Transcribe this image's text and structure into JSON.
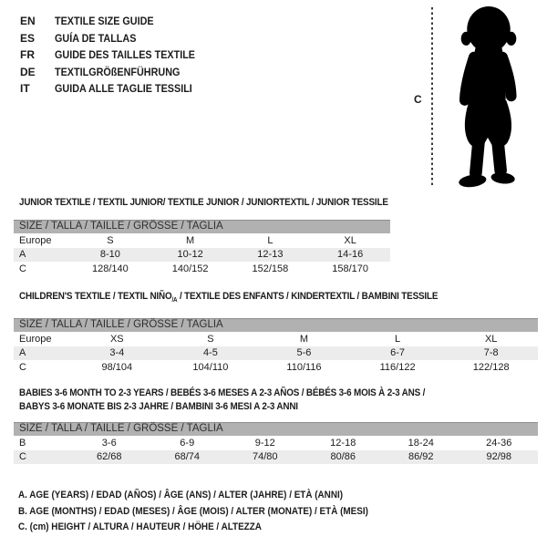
{
  "colors": {
    "background": "#ffffff",
    "table_header_bg": "#b1b1b1",
    "table_header_border": "#8d8d8d",
    "row_alt_bg": "#ececec",
    "text": "#1b1b1b",
    "silhouette": "#000000"
  },
  "languages": [
    {
      "code": "EN",
      "title": "TEXTILE SIZE GUIDE"
    },
    {
      "code": "ES",
      "title": "GUÍA DE TALLAS"
    },
    {
      "code": "FR",
      "title": "GUIDE DES TAILLES TEXTILE"
    },
    {
      "code": "DE",
      "title": "TEXTILGRÖßENFÜHRUNG"
    },
    {
      "code": "IT",
      "title": "GUIDA ALLE TAGLIE TESSILI"
    }
  ],
  "figure": {
    "label": "C",
    "icon": "toddler-silhouette-icon"
  },
  "tables": [
    {
      "title_segments": [
        {
          "text": "JUNIOR TEXTILE / TEXTIL JUNIOR/ TEXTILE JUNIOR / JUNIORTEXTIL / JUNIOR TESSILE"
        }
      ],
      "size_header": "SIZE / TALLA / TAILLE / GRÖSSE / TAGLIA",
      "rows": [
        {
          "label": "Europe",
          "values": [
            "S",
            "M",
            "L",
            "XL"
          ],
          "shaded": false
        },
        {
          "label": "A",
          "values": [
            "8-10",
            "10-12",
            "12-13",
            "14-16"
          ],
          "shaded": true
        },
        {
          "label": "C",
          "values": [
            "128/140",
            "140/152",
            "152/158",
            "158/170"
          ],
          "shaded": false
        }
      ]
    },
    {
      "title_segments": [
        {
          "text": "CHILDREN'S TEXTILE / TEXTIL NIÑO"
        },
        {
          "text": "/A",
          "sub": true
        },
        {
          "text": " / TEXTILE DES ENFANTS / KINDERTEXTIL / BAMBINI TESSILE"
        }
      ],
      "size_header": "SIZE / TALLA / TAILLE / GRÖSSE / TAGLIA",
      "rows": [
        {
          "label": "Europe",
          "values": [
            "XS",
            "S",
            "M",
            "L",
            "XL"
          ],
          "shaded": false
        },
        {
          "label": "A",
          "values": [
            "3-4",
            "4-5",
            "5-6",
            "6-7",
            "7-8"
          ],
          "shaded": true
        },
        {
          "label": "C",
          "values": [
            "98/104",
            "104/110",
            "110/116",
            "116/122",
            "122/128"
          ],
          "shaded": false
        }
      ]
    },
    {
      "title_segments": [
        {
          "text": "BABIES 3-6 MONTH TO 2-3 YEARS / BEBÉS 3-6 MESES A 2-3 AÑOS / BÉBÉS 3-6 MOIS À 2-3 ANS /"
        },
        {
          "br": true
        },
        {
          "text": "BABYS 3-6 MONATE BIS 2-3 JAHRE / BAMBINI 3-6 MESI A 2-3 ANNI"
        }
      ],
      "size_header": "SIZE / TALLA / TAILLE / GRÖSSE / TAGLIA",
      "rows": [
        {
          "label": "B",
          "values": [
            "3-6",
            "6-9",
            "9-12",
            "12-18",
            "18-24",
            "24-36"
          ],
          "shaded": false
        },
        {
          "label": "C",
          "values": [
            "62/68",
            "68/74",
            "74/80",
            "80/86",
            "86/92",
            "92/98"
          ],
          "shaded": true
        }
      ]
    }
  ],
  "footnotes": [
    "A. AGE (YEARS) / EDAD (AÑOS) / ÂGE (ANS) / ALTER (JAHRE) / ETÀ (ANNI)",
    "B. AGE (MONTHS) / EDAD (MESES) / ÂGE (MOIS) / ALTER (MONATE) / ETÀ (MESI)",
    "C. (cm) HEIGHT / ALTURA / HAUTEUR / HÖHE / ALTEZZA"
  ]
}
